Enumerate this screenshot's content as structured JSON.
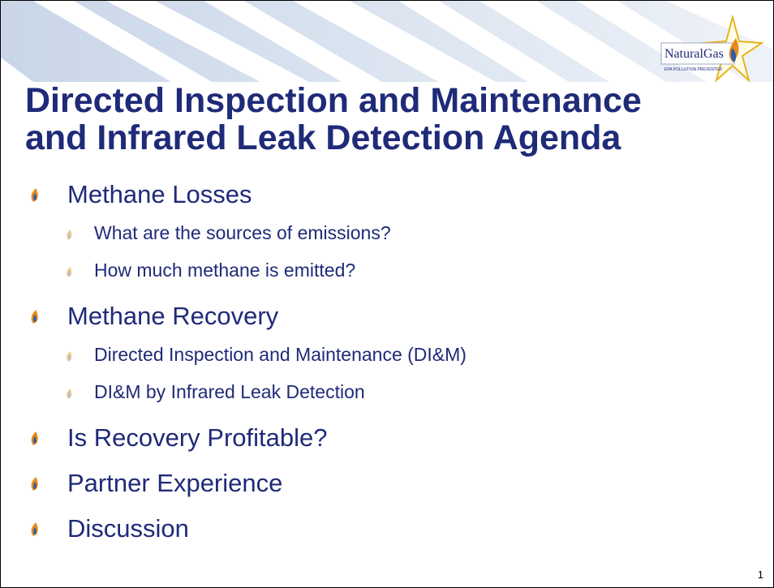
{
  "logo": {
    "name": "NaturalGas",
    "tagline": "EPA POLLUTION PREVENTER"
  },
  "title": {
    "lines": [
      "Directed Inspection and Maintenance",
      "and Infrared Leak Detection Agenda"
    ]
  },
  "bullets": [
    {
      "text": "Methane Losses",
      "sub": [
        "What are the sources of emissions?",
        "How much methane is emitted?"
      ]
    },
    {
      "text": "Methane Recovery",
      "sub": [
        "Directed Inspection and Maintenance (DI&M)",
        "DI&M by Infrared Leak Detection"
      ]
    },
    {
      "text": "Is Recovery Profitable?",
      "sub": []
    },
    {
      "text": "Partner Experience",
      "sub": []
    },
    {
      "text": "Discussion",
      "sub": []
    }
  ],
  "page_number": "1"
}
